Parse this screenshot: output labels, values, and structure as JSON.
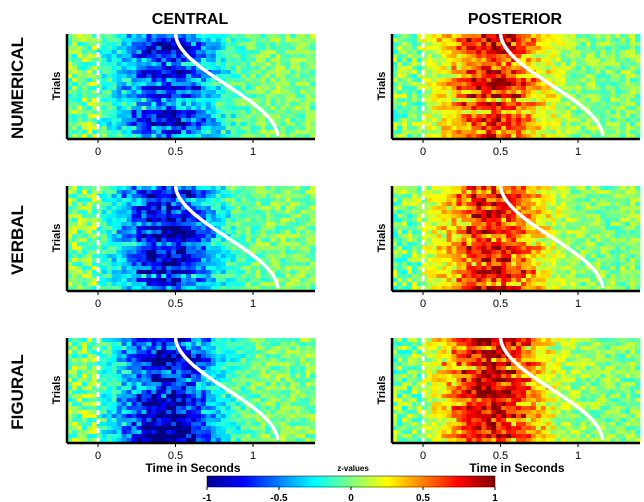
{
  "chart_data": {
    "type": "heatmap",
    "columns": [
      "CENTRAL",
      "POSTERIOR"
    ],
    "rows": [
      "NUMERICAL",
      "VERBAL",
      "FIGURAL"
    ],
    "ylabel": "Trials",
    "xlabel": "Time in Seconds",
    "x_ticks": [
      "0",
      "0.5",
      "1"
    ],
    "x_tick_values": [
      0,
      0.5,
      1
    ],
    "xlim": [
      -0.2,
      1.4
    ],
    "onset_marker_x": 0,
    "colorbar": {
      "label": "z-values",
      "min": -1,
      "max": 1,
      "ticks": [
        "-1",
        "-0.5",
        "0",
        "0.5",
        "1"
      ],
      "tick_values": [
        -1,
        -0.5,
        0,
        0.5,
        1
      ],
      "colormap": "jet"
    },
    "panels": [
      {
        "row": "NUMERICAL",
        "column": "CENTRAL",
        "dominant": "negative",
        "peak_z": -0.8,
        "response_time_curve": {
          "start_s": 0.5,
          "end_s": 1.1
        }
      },
      {
        "row": "NUMERICAL",
        "column": "POSTERIOR",
        "dominant": "positive",
        "peak_z": 0.8,
        "response_time_curve": {
          "start_s": 0.5,
          "end_s": 1.1
        }
      },
      {
        "row": "VERBAL",
        "column": "CENTRAL",
        "dominant": "negative",
        "peak_z": -0.85,
        "response_time_curve": {
          "start_s": 0.5,
          "end_s": 1.1
        }
      },
      {
        "row": "VERBAL",
        "column": "POSTERIOR",
        "dominant": "positive",
        "peak_z": 0.85,
        "response_time_curve": {
          "start_s": 0.5,
          "end_s": 1.1
        }
      },
      {
        "row": "FIGURAL",
        "column": "CENTRAL",
        "dominant": "negative",
        "peak_z": -1.0,
        "response_time_curve": {
          "start_s": 0.5,
          "end_s": 1.1
        }
      },
      {
        "row": "FIGURAL",
        "column": "POSTERIOR",
        "dominant": "positive",
        "peak_z": 0.95,
        "response_time_curve": {
          "start_s": 0.5,
          "end_s": 1.1
        }
      }
    ]
  }
}
